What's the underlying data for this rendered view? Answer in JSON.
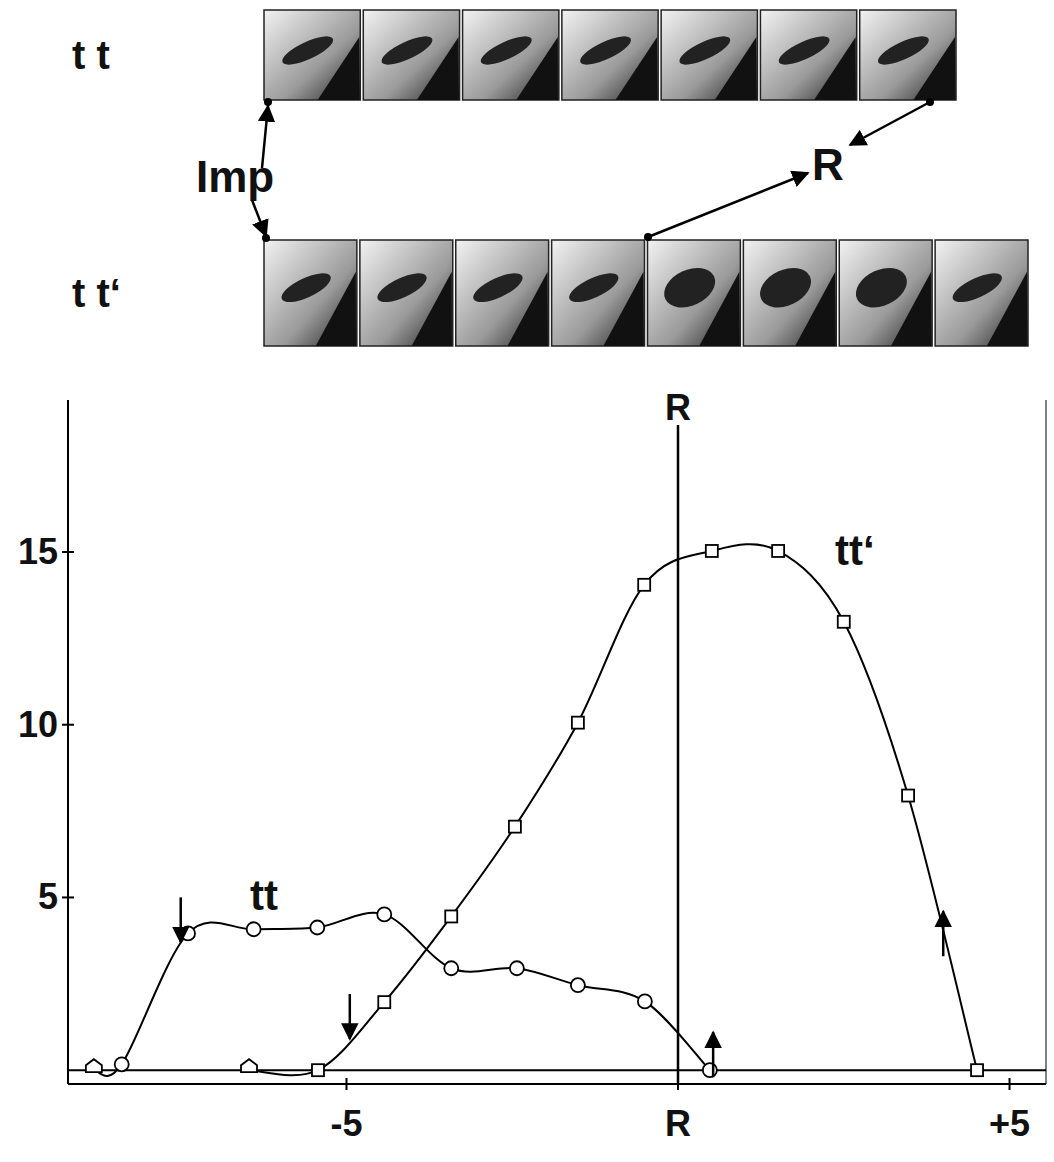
{
  "header": {
    "strips": [
      {
        "label": "t t",
        "frames": 7
      },
      {
        "label": "t t‘",
        "frames": 8
      }
    ],
    "labels": [
      "Imp",
      "R"
    ]
  },
  "chart_data": {
    "type": "line",
    "series": [
      {
        "name": "tt",
        "color": "#000000",
        "marker": "circle",
        "x": [
          -8.81,
          -8.39,
          -7.39,
          -6.4,
          -5.44,
          -4.43,
          -3.42,
          -2.43,
          -1.51,
          -0.5,
          0.48
        ],
        "values": [
          0,
          0.17,
          3.96,
          4.08,
          4.13,
          4.51,
          2.95,
          2.95,
          2.46,
          1.99,
          0
        ]
      },
      {
        "name": "tt‘",
        "color": "#000000",
        "marker": "square",
        "x": [
          -6.47,
          -5.43,
          -4.43,
          -3.42,
          -2.46,
          -1.51,
          -0.51,
          0.51,
          1.51,
          2.5,
          3.47,
          4.51
        ],
        "values": [
          0,
          0,
          1.97,
          4.45,
          7.05,
          10.06,
          14.05,
          15.03,
          15.03,
          12.98,
          7.95,
          0
        ]
      }
    ],
    "xlim": [
      -9.2,
      5.55
    ],
    "xticks": [
      -5,
      {
        "value": 0,
        "label": "R"
      },
      {
        "value": 5,
        "label": "+5"
      }
    ],
    "ylim": [
      -0.4,
      19.4
    ],
    "yticks": [
      5,
      10,
      15
    ],
    "annotations": [
      {
        "text": "R",
        "x": 0
      }
    ],
    "arrows": [
      {
        "x": -7.5,
        "y": 3.7,
        "direction": "down"
      },
      {
        "x": -4.95,
        "y": 0.9,
        "direction": "down"
      },
      {
        "x": 0.53,
        "y": 1.1,
        "direction": "up"
      },
      {
        "x": 4.0,
        "y": 4.6,
        "direction": "up"
      }
    ]
  }
}
